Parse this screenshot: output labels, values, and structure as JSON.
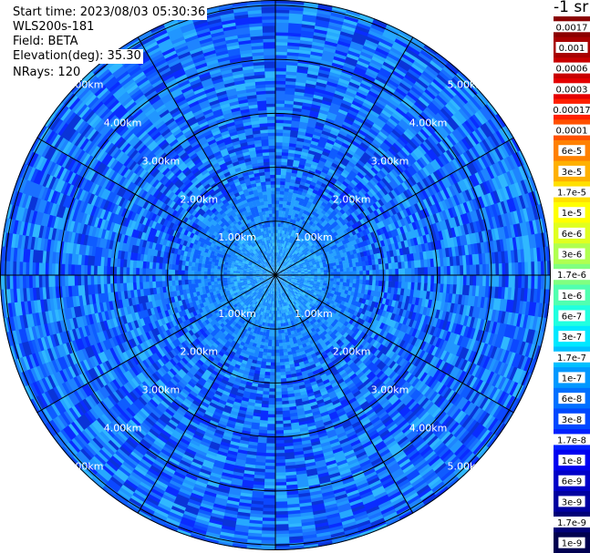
{
  "info": {
    "start_time": "Start time: 2023/08/03 05:30:36",
    "instrument": "WLS200s-181",
    "field": "Field: BETA",
    "elevation": "Elevation(deg): 35.30",
    "nrays": "NRays: 120"
  },
  "colorbar": {
    "unit_label": "-1 sr",
    "labels": [
      "0.0017",
      "0.001",
      "0.0006",
      "0.0003",
      "0.00017",
      "0.0001",
      "6e-5",
      "3e-5",
      "1.7e-5",
      "1e-5",
      "6e-6",
      "3e-6",
      "1.7e-6",
      "1e-6",
      "6e-7",
      "3e-7",
      "1.7e-7",
      "1e-7",
      "6e-8",
      "3e-8",
      "1.7e-8",
      "1e-8",
      "6e-9",
      "3e-9",
      "1.7e-9",
      "1e-9"
    ],
    "colors": [
      "#8b0000",
      "#a80000",
      "#c80000",
      "#e40000",
      "#ff2000",
      "#ff5000",
      "#ff8000",
      "#ffb000",
      "#ffe000",
      "#ffff00",
      "#e0ff20",
      "#b0ff50",
      "#80ff80",
      "#50ffb0",
      "#20ffe0",
      "#00e8ff",
      "#00c0ff",
      "#0098ff",
      "#0070ff",
      "#0048ff",
      "#0020ff",
      "#0000f0",
      "#0000c8",
      "#0000a0",
      "#000078",
      "#000050"
    ]
  },
  "chart_data": {
    "type": "heatmap",
    "projection": "polar (PPI scan)",
    "field": "BETA",
    "elevation_deg": 35.3,
    "nrays": 120,
    "range_rings_km": [
      1.0,
      2.0,
      3.0,
      4.0,
      5.0
    ],
    "ring_labels": [
      "1.00km",
      "2.00km",
      "3.00km",
      "4.00km",
      "5.00km"
    ],
    "radial_lines_deg": [
      0,
      30,
      60,
      90,
      120,
      150,
      180,
      210,
      240,
      270,
      300,
      330
    ],
    "max_range_km": 5.1,
    "value_range": [
      1e-09,
      0.0017
    ],
    "scale": "log",
    "dominant_value_range": [
      1e-08,
      1.7e-07
    ],
    "near_center_value_approx": 1.7e-07,
    "grid": true,
    "legend": "right"
  }
}
